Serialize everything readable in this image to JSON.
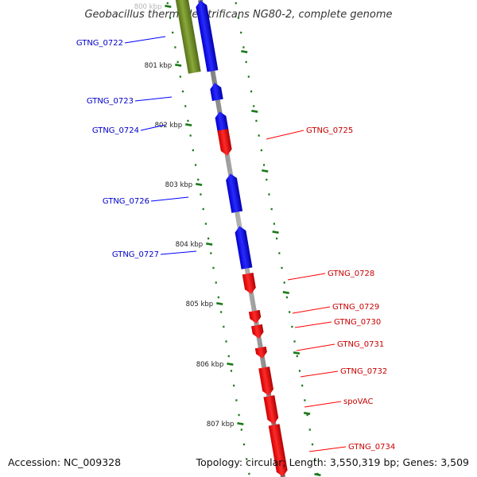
{
  "title": "Geobacillus thermodenitrificans NG80-2, complete genome",
  "accession_text": "Accession: NC_009328",
  "topology_text": "Topology: circular; Length: 3,550,319 bp; Genes: 3,509",
  "colors": {
    "forward_strand": "#0000ff",
    "reverse_strand": "#ff0000",
    "other_feature": "#6b8e23",
    "backbone": "#8c8c8c",
    "ticks": "#1a7a1a"
  },
  "tick_labels": [
    {
      "kbp": 800,
      "label": "800 kbp"
    },
    {
      "kbp": 801,
      "label": "801 kbp"
    },
    {
      "kbp": 802,
      "label": "802 kbp"
    },
    {
      "kbp": 803,
      "label": "803 kbp"
    },
    {
      "kbp": 804,
      "label": "804 kbp"
    },
    {
      "kbp": 805,
      "label": "805 kbp"
    },
    {
      "kbp": 806,
      "label": "806 kbp"
    },
    {
      "kbp": 807,
      "label": "807 kbp"
    }
  ],
  "forward_genes": [
    {
      "name": "GTNG_0722"
    },
    {
      "name": "GTNG_0723"
    },
    {
      "name": "GTNG_0724"
    },
    {
      "name": "GTNG_0726"
    },
    {
      "name": "GTNG_0727"
    }
  ],
  "reverse_genes": [
    {
      "name": "GTNG_0725"
    },
    {
      "name": "GTNG_0728"
    },
    {
      "name": "GTNG_0729"
    },
    {
      "name": "GTNG_0730"
    },
    {
      "name": "GTNG_0731"
    },
    {
      "name": "GTNG_0732"
    },
    {
      "name": "spoVAC"
    },
    {
      "name": "GTNG_0734"
    }
  ]
}
